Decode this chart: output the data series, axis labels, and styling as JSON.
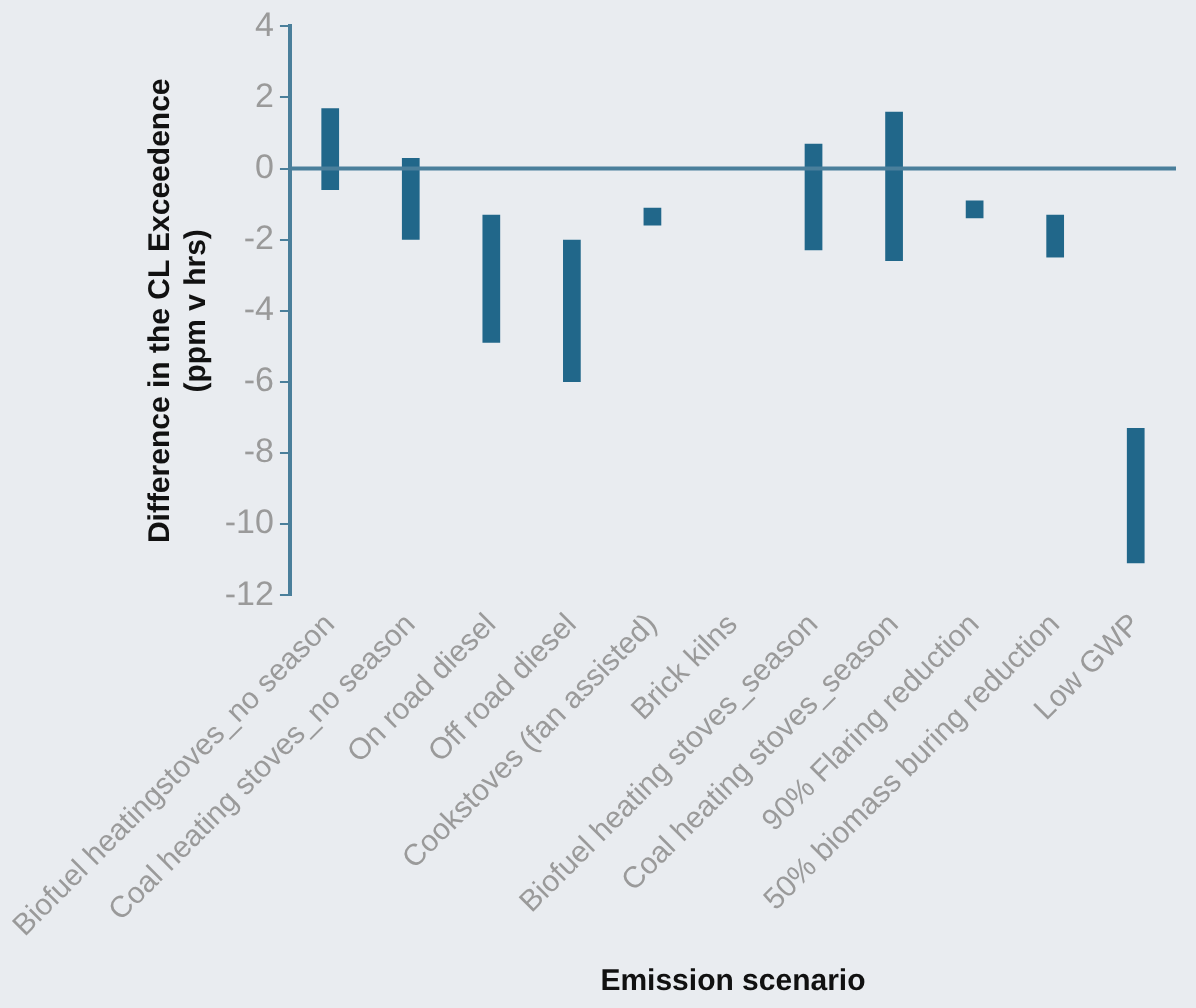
{
  "chart_data": {
    "type": "bar",
    "xlabel": "Emission scenario",
    "ylabel": "Difference in the CL Exceedence\n(ppm v hrs)",
    "categories": [
      "Biofuel heatingstoves_no season",
      "Coal heating stoves_no season",
      "On road diesel",
      "Off road diesel",
      "Cookstoves (fan assisted)",
      "Brick kilns",
      "Biofuel heating stoves_season",
      "Coal heating stoves_season",
      "90% Flaring reduction",
      "50% biomass buring reduction",
      "Low GWP"
    ],
    "base": [
      -0.6,
      -2.0,
      -4.9,
      -6.0,
      -1.6,
      null,
      -2.3,
      -2.6,
      -1.4,
      -2.5,
      -11.1
    ],
    "values": [
      2.3,
      2.3,
      3.6,
      4.0,
      0.5,
      null,
      3.0,
      4.2,
      0.5,
      1.2,
      3.8
    ],
    "color": "#21678a",
    "ylim": [
      -12,
      4
    ],
    "yticks": [
      -12,
      -10,
      -8,
      -6,
      -4,
      -2,
      0,
      2,
      4
    ],
    "grid": false,
    "legend": false,
    "ref_lines": [
      {
        "axis": "y",
        "value": 0,
        "color": "#4a7f9b"
      }
    ]
  }
}
